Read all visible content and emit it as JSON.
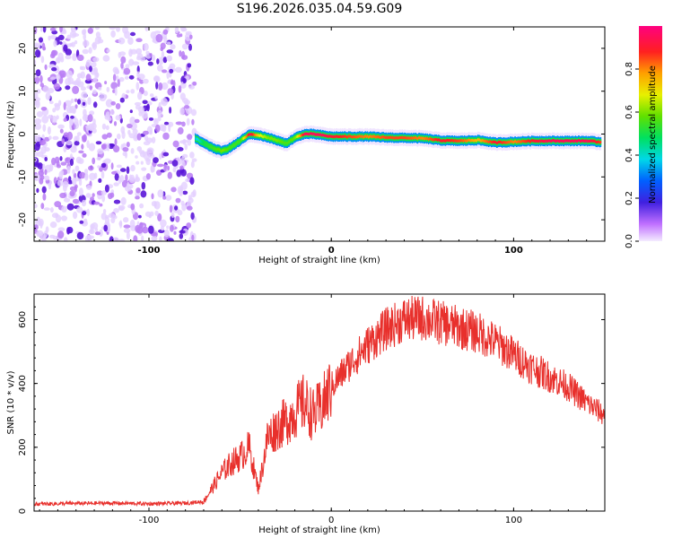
{
  "title": "S196.2026.035.04.59.G09",
  "top_panel": {
    "xlabel": "Height of straight line (km)",
    "ylabel": "Frequency (Hz)",
    "colorbar_label": "Normalized spectral amplitude",
    "colorbar_ticks": [
      "0.0",
      "0.2",
      "0.4",
      "0.6",
      "0.8"
    ],
    "x_ticks": [
      "-100",
      "0",
      "100"
    ],
    "y_ticks": [
      "20",
      "10",
      "0",
      "-10",
      "-20"
    ]
  },
  "bottom_panel": {
    "xlabel": "Height of straight line (km)",
    "ylabel": "SNR (10 * v/v)",
    "x_ticks": [
      "-100",
      "0",
      "100"
    ],
    "y_ticks": [
      "600",
      "400",
      "200",
      "0"
    ]
  },
  "chart_data": [
    {
      "type": "heatmap",
      "title": "S196.2026.035.04.59.G09",
      "xlabel": "Height of straight line (km)",
      "ylabel": "Frequency (Hz)",
      "xlim": [
        -163,
        150
      ],
      "ylim": [
        -25,
        25
      ],
      "x_ticks": [
        -100,
        0,
        100
      ],
      "y_ticks": [
        -20,
        -10,
        0,
        10,
        20
      ],
      "colorbar": {
        "label": "Normalized spectral amplitude",
        "range": [
          0,
          1
        ],
        "ticks": [
          0,
          0.2,
          0.4,
          0.6,
          0.8
        ]
      },
      "noise_region_x": [
        -163,
        -75
      ],
      "ridge": {
        "x": [
          -75,
          -70,
          -65,
          -60,
          -55,
          -50,
          -45,
          -40,
          -35,
          -30,
          -25,
          -20,
          -15,
          -10,
          -5,
          0,
          10,
          20,
          30,
          40,
          50,
          60,
          70,
          80,
          90,
          100,
          110,
          120,
          130,
          140,
          148
        ],
        "frequency": [
          -1.0,
          -2.2,
          -3.3,
          -4.0,
          -3.0,
          -1.5,
          0.0,
          -0.3,
          -0.8,
          -1.5,
          -2.2,
          -0.8,
          0.0,
          0.0,
          -0.3,
          -0.6,
          -0.6,
          -0.6,
          -0.8,
          -0.9,
          -1.0,
          -1.5,
          -1.6,
          -1.4,
          -2.0,
          -1.8,
          -1.6,
          -1.6,
          -1.6,
          -1.6,
          -1.9
        ],
        "amplitude": [
          0.35,
          0.5,
          0.55,
          0.6,
          0.55,
          0.55,
          0.95,
          0.7,
          0.6,
          0.6,
          0.55,
          0.6,
          0.95,
          0.95,
          0.95,
          0.9,
          0.85,
          0.8,
          0.85,
          0.85,
          0.8,
          0.9,
          0.85,
          0.75,
          0.9,
          0.8,
          0.9,
          0.95,
          0.95,
          0.95,
          0.85
        ]
      }
    },
    {
      "type": "line",
      "xlabel": "Height of straight line (km)",
      "ylabel": "SNR (10 * v/v)",
      "xlim": [
        -163,
        150
      ],
      "ylim": [
        0,
        680
      ],
      "x_ticks": [
        -100,
        0,
        100
      ],
      "y_ticks": [
        0,
        200,
        400,
        600
      ],
      "series": [
        {
          "name": "SNR",
          "color": "#e8302c",
          "x": [
            -163,
            -140,
            -120,
            -100,
            -90,
            -80,
            -70,
            -65,
            -60,
            -55,
            -50,
            -45,
            -42,
            -40,
            -38,
            -35,
            -30,
            -25,
            -20,
            -15,
            -10,
            -5,
            0,
            10,
            20,
            30,
            40,
            50,
            60,
            70,
            80,
            90,
            100,
            110,
            120,
            130,
            140,
            150
          ],
          "y": [
            22,
            24,
            25,
            23,
            24,
            25,
            30,
            75,
            120,
            150,
            170,
            200,
            120,
            70,
            130,
            230,
            260,
            280,
            310,
            340,
            300,
            330,
            390,
            460,
            520,
            570,
            600,
            605,
            590,
            575,
            560,
            530,
            490,
            450,
            420,
            390,
            340,
            300
          ]
        }
      ]
    }
  ]
}
